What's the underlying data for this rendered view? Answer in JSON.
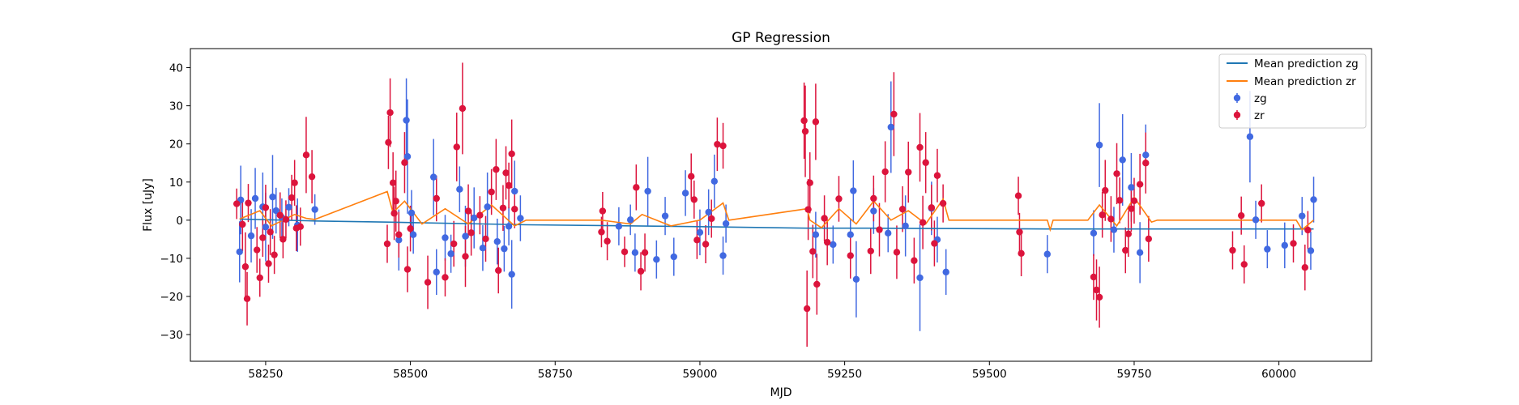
{
  "chart_data": {
    "type": "scatter",
    "title": "GP Regression",
    "xlabel": "MJD",
    "ylabel": "Flux [uJy]",
    "xlim": [
      58120,
      60160
    ],
    "ylim": [
      -37,
      45
    ],
    "xticks": [
      58250,
      58500,
      58750,
      59000,
      59250,
      59500,
      59750,
      60000
    ],
    "yticks": [
      -30,
      -20,
      -10,
      0,
      10,
      20,
      30,
      40
    ],
    "legend_position": "top-right",
    "legend": [
      "Mean prediction zg",
      "Mean prediction zr",
      "zg",
      "zr"
    ],
    "colors": {
      "mean_zg": "#1f77b4",
      "mean_zr": "#ff7f0e",
      "zg": "#4169e1",
      "zr": "#dc143c"
    },
    "series": [
      {
        "name": "Mean prediction zg",
        "kind": "line",
        "x": [
          58205,
          58335,
          58460,
          58700,
          59000,
          59185,
          59290,
          59450,
          59600,
          59800,
          60000,
          60060
        ],
        "y": [
          0.3,
          -0.2,
          -0.5,
          -1.2,
          -1.7,
          -2.1,
          -2.1,
          -2.2,
          -2.3,
          -2.3,
          -2.3,
          -2.3
        ]
      },
      {
        "name": "Mean prediction zr",
        "kind": "line",
        "x": [
          58205,
          58240,
          58260,
          58300,
          58320,
          58335,
          58460,
          58470,
          58490,
          58520,
          58560,
          58600,
          58640,
          58680,
          58700,
          58830,
          58880,
          58900,
          58950,
          59000,
          59040,
          59050,
          59185,
          59190,
          59210,
          59240,
          59270,
          59300,
          59330,
          59360,
          59390,
          59420,
          59430,
          59550,
          59600,
          59605,
          59610,
          59670,
          59690,
          59720,
          59750,
          59780,
          59790,
          59920,
          60000,
          60030,
          60040,
          60060
        ],
        "y": [
          0.3,
          2.5,
          -1.5,
          1.5,
          0.5,
          0.2,
          7.5,
          2.0,
          5.0,
          -1.0,
          3.0,
          -1.0,
          4.0,
          -1.5,
          0.0,
          0.0,
          -1.0,
          1.5,
          -1.5,
          0.0,
          4.5,
          0.0,
          3.0,
          0.0,
          -2.0,
          3.0,
          -1.0,
          5.0,
          0.0,
          2.5,
          -1.0,
          5.5,
          0.0,
          0.0,
          0.0,
          -2.5,
          0.0,
          0.0,
          4.0,
          -1.5,
          6.0,
          -0.5,
          0.0,
          0.0,
          0.0,
          0.0,
          -2.5,
          0.0
        ]
      },
      {
        "name": "zg",
        "kind": "errorbar",
        "points": [
          [
            58205,
            -8.3,
            8
          ],
          [
            58207,
            5.3,
            9
          ],
          [
            58225,
            -4.1,
            7
          ],
          [
            58232,
            5.7,
            8
          ],
          [
            58245,
            3.5,
            9
          ],
          [
            58250,
            -1.8,
            9
          ],
          [
            58262,
            6.1,
            11
          ],
          [
            58268,
            2.5,
            6
          ],
          [
            58278,
            0.7,
            5
          ],
          [
            58290,
            3.4,
            5
          ],
          [
            58305,
            -1.3,
            7
          ],
          [
            58335,
            2.8,
            4
          ],
          [
            58480,
            -5.2,
            8
          ],
          [
            58493,
            26.2,
            11
          ],
          [
            58495,
            16.7,
            15
          ],
          [
            58502,
            1.9,
            6
          ],
          [
            58505,
            -3.8,
            5
          ],
          [
            58540,
            11.3,
            10
          ],
          [
            58545,
            -13.6,
            6
          ],
          [
            58560,
            -4.6,
            6
          ],
          [
            58570,
            -8.8,
            5
          ],
          [
            58585,
            8.1,
            6
          ],
          [
            58595,
            -4.2,
            8
          ],
          [
            58610,
            0.6,
            8
          ],
          [
            58625,
            -7.3,
            6
          ],
          [
            58633,
            3.5,
            9
          ],
          [
            58650,
            -5.6,
            6
          ],
          [
            58662,
            -7.5,
            6
          ],
          [
            58670,
            -1.6,
            5
          ],
          [
            58675,
            -14.2,
            9
          ],
          [
            58680,
            7.6,
            8
          ],
          [
            58690,
            0.5,
            6
          ],
          [
            58860,
            -1.6,
            5
          ],
          [
            58880,
            0.1,
            4
          ],
          [
            58888,
            -8.5,
            5
          ],
          [
            58910,
            7.6,
            9
          ],
          [
            58925,
            -10.3,
            5
          ],
          [
            58940,
            1.1,
            5
          ],
          [
            58955,
            -9.6,
            5
          ],
          [
            58975,
            7.1,
            6
          ],
          [
            59000,
            -3.2,
            6
          ],
          [
            59015,
            2.1,
            6
          ],
          [
            59025,
            10.2,
            7
          ],
          [
            59040,
            -9.3,
            5
          ],
          [
            59045,
            -0.9,
            5
          ],
          [
            59200,
            -3.8,
            6
          ],
          [
            59230,
            -6.4,
            5
          ],
          [
            59260,
            -3.8,
            4
          ],
          [
            59265,
            7.7,
            8
          ],
          [
            59270,
            -15.5,
            10
          ],
          [
            59300,
            2.4,
            6
          ],
          [
            59325,
            -3.4,
            5
          ],
          [
            59330,
            24.4,
            12
          ],
          [
            59355,
            -1.5,
            8
          ],
          [
            59380,
            -15.1,
            14
          ],
          [
            59400,
            3.1,
            7
          ],
          [
            59410,
            -5.1,
            6
          ],
          [
            59425,
            -13.6,
            6
          ],
          [
            59600,
            -8.9,
            5
          ],
          [
            59680,
            -3.4,
            6
          ],
          [
            59690,
            19.7,
            11
          ],
          [
            59715,
            -2.5,
            6
          ],
          [
            59730,
            15.8,
            12
          ],
          [
            59745,
            8.6,
            9
          ],
          [
            59760,
            -8.5,
            8
          ],
          [
            59770,
            17.1,
            8
          ],
          [
            59950,
            21.9,
            12
          ],
          [
            59960,
            0.1,
            5
          ],
          [
            59980,
            -7.6,
            5
          ],
          [
            60010,
            -6.6,
            6
          ],
          [
            60040,
            1.1,
            5
          ],
          [
            60060,
            5.4,
            6
          ],
          [
            60055,
            -8.0,
            5
          ]
        ]
      },
      {
        "name": "zr",
        "kind": "errorbar",
        "points": [
          [
            58200,
            4.3,
            4
          ],
          [
            58210,
            -1.1,
            7
          ],
          [
            58215,
            -12.2,
            9
          ],
          [
            58218,
            -20.6,
            7
          ],
          [
            58220,
            4.5,
            5
          ],
          [
            58235,
            -7.8,
            6
          ],
          [
            58240,
            -15.1,
            5
          ],
          [
            58245,
            -4.6,
            5
          ],
          [
            58250,
            3.3,
            6
          ],
          [
            58255,
            -11.4,
            5
          ],
          [
            58258,
            -3.1,
            6
          ],
          [
            58265,
            -9.1,
            5
          ],
          [
            58275,
            1.3,
            6
          ],
          [
            58280,
            -5.0,
            5
          ],
          [
            58285,
            0.2,
            5
          ],
          [
            58295,
            5.9,
            6
          ],
          [
            58300,
            9.8,
            6
          ],
          [
            58303,
            -2.1,
            6
          ],
          [
            58310,
            -1.7,
            5
          ],
          [
            58320,
            17.1,
            10
          ],
          [
            58330,
            11.4,
            7
          ],
          [
            58460,
            -6.2,
            5
          ],
          [
            58462,
            20.4,
            7
          ],
          [
            58465,
            28.2,
            9
          ],
          [
            58470,
            9.8,
            8
          ],
          [
            58472,
            1.8,
            7
          ],
          [
            58475,
            5.0,
            8
          ],
          [
            58480,
            -3.8,
            6
          ],
          [
            58490,
            15.1,
            8
          ],
          [
            58495,
            -12.9,
            6
          ],
          [
            58500,
            -2.2,
            6
          ],
          [
            58530,
            -16.3,
            7
          ],
          [
            58545,
            5.7,
            6
          ],
          [
            58560,
            -15.0,
            5
          ],
          [
            58575,
            -6.2,
            6
          ],
          [
            58580,
            19.2,
            9
          ],
          [
            58590,
            29.3,
            12
          ],
          [
            58595,
            -9.5,
            8
          ],
          [
            58600,
            2.4,
            7
          ],
          [
            58605,
            -3.3,
            6
          ],
          [
            58620,
            1.3,
            5
          ],
          [
            58630,
            -4.9,
            6
          ],
          [
            58640,
            7.4,
            6
          ],
          [
            58648,
            13.3,
            8
          ],
          [
            58652,
            -13.2,
            6
          ],
          [
            58660,
            3.2,
            6
          ],
          [
            58665,
            12.4,
            7
          ],
          [
            58670,
            9.1,
            6
          ],
          [
            58675,
            17.4,
            9
          ],
          [
            58680,
            2.9,
            5
          ],
          [
            58830,
            -3.1,
            4
          ],
          [
            58832,
            2.4,
            5
          ],
          [
            58840,
            -5.5,
            5
          ],
          [
            58870,
            -8.3,
            4
          ],
          [
            58890,
            8.6,
            6
          ],
          [
            58898,
            -13.4,
            5
          ],
          [
            58905,
            -8.5,
            5
          ],
          [
            58985,
            11.5,
            6
          ],
          [
            58990,
            5.4,
            5
          ],
          [
            58995,
            -5.2,
            5
          ],
          [
            59010,
            -6.3,
            5
          ],
          [
            59020,
            0.4,
            5
          ],
          [
            59030,
            19.9,
            7
          ],
          [
            59040,
            19.5,
            6
          ],
          [
            59180,
            26.1,
            10
          ],
          [
            59182,
            23.3,
            12
          ],
          [
            59185,
            -23.2,
            10
          ],
          [
            59187,
            2.8,
            8
          ],
          [
            59190,
            9.8,
            8
          ],
          [
            59195,
            -8.2,
            7
          ],
          [
            59200,
            25.8,
            10
          ],
          [
            59202,
            -16.8,
            8
          ],
          [
            59215,
            0.5,
            6
          ],
          [
            59220,
            -5.8,
            6
          ],
          [
            59240,
            5.6,
            6
          ],
          [
            59260,
            -9.3,
            6
          ],
          [
            59295,
            -8.1,
            6
          ],
          [
            59300,
            5.7,
            6
          ],
          [
            59310,
            -2.5,
            7
          ],
          [
            59320,
            12.7,
            8
          ],
          [
            59335,
            27.8,
            11
          ],
          [
            59340,
            -8.4,
            7
          ],
          [
            59350,
            2.9,
            6
          ],
          [
            59360,
            12.6,
            8
          ],
          [
            59370,
            -10.6,
            6
          ],
          [
            59380,
            19.1,
            9
          ],
          [
            59385,
            -0.6,
            7
          ],
          [
            59390,
            15.1,
            8
          ],
          [
            59400,
            3.3,
            6
          ],
          [
            59405,
            -6.1,
            6
          ],
          [
            59410,
            11.7,
            7
          ],
          [
            59420,
            4.4,
            5
          ],
          [
            59550,
            6.4,
            5
          ],
          [
            59552,
            -3.1,
            5
          ],
          [
            59555,
            -8.7,
            6
          ],
          [
            59680,
            -14.9,
            6
          ],
          [
            59685,
            -18.3,
            8
          ],
          [
            59690,
            -20.2,
            8
          ],
          [
            59695,
            1.4,
            6
          ],
          [
            59700,
            7.8,
            8
          ],
          [
            59710,
            0.3,
            6
          ],
          [
            59720,
            12.2,
            8
          ],
          [
            59725,
            5.2,
            6
          ],
          [
            59735,
            -7.9,
            6
          ],
          [
            59740,
            -3.6,
            6
          ],
          [
            59745,
            3.0,
            6
          ],
          [
            59750,
            5.1,
            6
          ],
          [
            59760,
            9.4,
            8
          ],
          [
            59770,
            15.0,
            8
          ],
          [
            59775,
            -4.9,
            6
          ],
          [
            59920,
            -7.9,
            5
          ],
          [
            59935,
            1.2,
            5
          ],
          [
            59940,
            -11.6,
            5
          ],
          [
            59970,
            4.4,
            5
          ],
          [
            60025,
            -6.1,
            5
          ],
          [
            60045,
            -12.4,
            6
          ],
          [
            60050,
            -2.6,
            5
          ]
        ]
      }
    ]
  }
}
